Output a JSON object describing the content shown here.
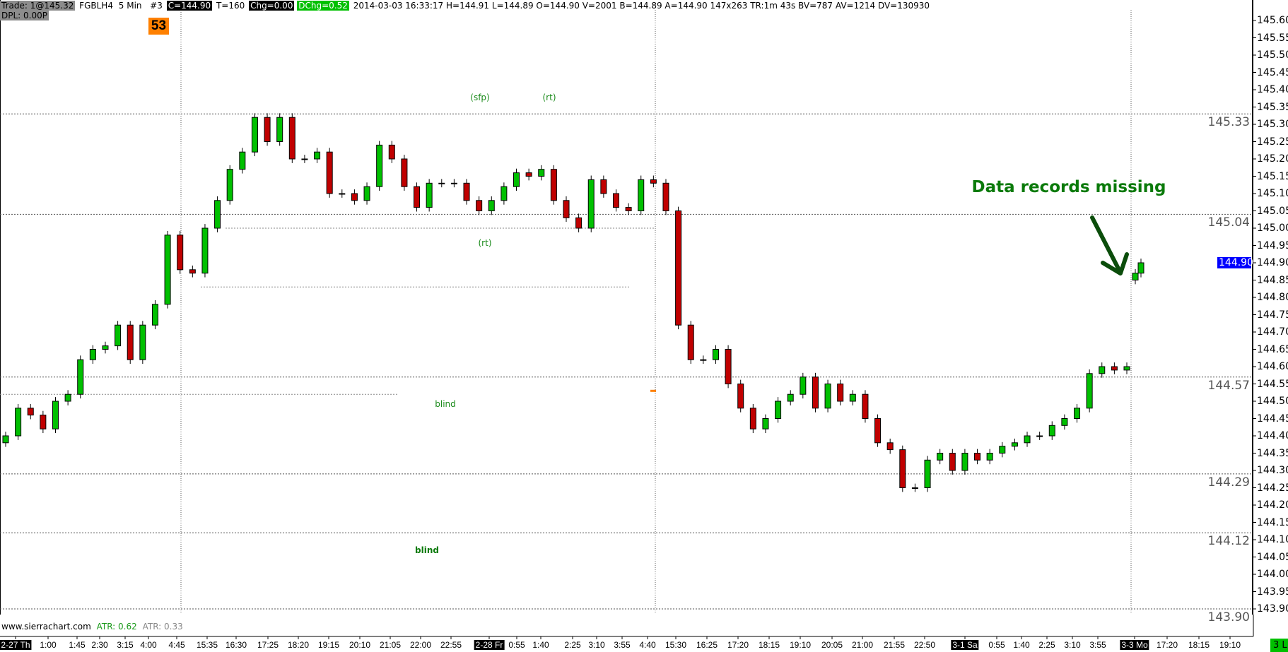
{
  "header": {
    "trade": "Trade: 1@145.32",
    "symbol": "FGBLH4",
    "interval": "5 Min",
    "chart_no": "#3",
    "close": "C=144.90",
    "ticks": "T=160",
    "chg": "Chg=0.00",
    "dchg": "DChg=0.52",
    "stats": "2014-03-03 16:33:17 H=144.91 L=144.89 O=144.90 V=2001 B=144.89 A=144.90 147x263 TR:1m 43s BV=787 AV=1214 DV=130930",
    "dpl": "DPL: 0.00P",
    "badge": "53"
  },
  "annotations": {
    "sfp": "(sfp)",
    "rt_top": "(rt)",
    "rt_mid": "(rt)",
    "blind1": "blind",
    "blind2": "blind",
    "missing": "Data records missing"
  },
  "footer": {
    "site": "www.sierrachart.com",
    "atr1": "ATR: 0.62",
    "atr2": "ATR: 0.33",
    "bars_badge": "3 L"
  },
  "colors": {
    "up": "#00c000",
    "down": "#c00000",
    "accent": "#0a7a0a",
    "last_price_bg": "#0000ff",
    "badge": "#ff8000"
  },
  "chart_data": {
    "type": "candlestick",
    "ylim": [
      143.9,
      145.6
    ],
    "y_ticks": [
      "145.60",
      "145.55",
      "145.50",
      "145.45",
      "145.40",
      "145.35",
      "145.30",
      "145.25",
      "145.20",
      "145.15",
      "145.10",
      "145.05",
      "145.00",
      "144.95",
      "144.90",
      "144.85",
      "144.80",
      "144.75",
      "144.70",
      "144.65",
      "144.60",
      "144.55",
      "144.50",
      "144.45",
      "144.40",
      "144.35",
      "144.30",
      "144.25",
      "144.20",
      "144.15",
      "144.10",
      "144.05",
      "144.00",
      "143.95",
      "143.90"
    ],
    "last_price": "144.90",
    "levels": [
      "145.33",
      "145.04",
      "144.57",
      "144.29",
      "144.12",
      "143.90"
    ],
    "x_ticks": [
      {
        "label": "2-27 Th",
        "day": true
      },
      {
        "label": "1:00"
      },
      {
        "label": "1:45"
      },
      {
        "label": "2:30"
      },
      {
        "label": "3:15"
      },
      {
        "label": "4:00"
      },
      {
        "label": "4:45"
      },
      {
        "label": "15:35"
      },
      {
        "label": "16:30"
      },
      {
        "label": "17:25"
      },
      {
        "label": "18:20"
      },
      {
        "label": "19:15"
      },
      {
        "label": "20:10"
      },
      {
        "label": "21:05"
      },
      {
        "label": "22:00"
      },
      {
        "label": "22:55"
      },
      {
        "label": "2-28 Fr",
        "day": true
      },
      {
        "label": "0:55"
      },
      {
        "label": "1:40"
      },
      {
        "label": "2:25"
      },
      {
        "label": "3:10"
      },
      {
        "label": "3:55"
      },
      {
        "label": "4:40"
      },
      {
        "label": "15:30"
      },
      {
        "label": "16:25"
      },
      {
        "label": "17:20"
      },
      {
        "label": "18:15"
      },
      {
        "label": "19:10"
      },
      {
        "label": "20:05"
      },
      {
        "label": "21:00"
      },
      {
        "label": "21:55"
      },
      {
        "label": "22:50"
      },
      {
        "label": "3-1 Sa",
        "day": true
      },
      {
        "label": "0:55"
      },
      {
        "label": "1:40"
      },
      {
        "label": "2:25"
      },
      {
        "label": "3:10"
      },
      {
        "label": "3:55"
      },
      {
        "label": "3-3 Mo",
        "day": true
      },
      {
        "label": "17:20"
      },
      {
        "label": "18:15"
      },
      {
        "label": "19:10"
      }
    ],
    "closes": [
      144.4,
      144.48,
      144.46,
      144.42,
      144.5,
      144.52,
      144.62,
      144.65,
      144.66,
      144.72,
      144.62,
      144.72,
      144.78,
      144.98,
      144.88,
      144.87,
      145.0,
      145.08,
      145.17,
      145.22,
      145.32,
      145.25,
      145.32,
      145.2,
      145.2,
      145.22,
      145.1,
      145.1,
      145.08,
      145.12,
      145.24,
      145.2,
      145.12,
      145.06,
      145.13,
      145.13,
      145.13,
      145.08,
      145.05,
      145.08,
      145.12,
      145.16,
      145.15,
      145.17,
      145.08,
      145.03,
      145.0,
      145.14,
      145.1,
      145.06,
      145.05,
      145.14,
      145.13,
      145.05,
      144.72,
      144.62,
      144.62,
      144.65,
      144.55,
      144.48,
      144.42,
      144.45,
      144.5,
      144.52,
      144.57,
      144.48,
      144.55,
      144.5,
      144.52,
      144.45,
      144.38,
      144.36,
      144.25,
      144.25,
      144.33,
      144.35,
      144.3,
      144.35,
      144.33,
      144.35,
      144.37,
      144.38,
      144.4,
      144.4,
      144.43,
      144.45,
      144.48,
      144.58,
      144.6,
      144.59,
      144.6
    ],
    "closes_after_gap": [
      144.87,
      144.9
    ],
    "support_lines": [
      "145.00",
      "144.83",
      "144.52"
    ]
  }
}
